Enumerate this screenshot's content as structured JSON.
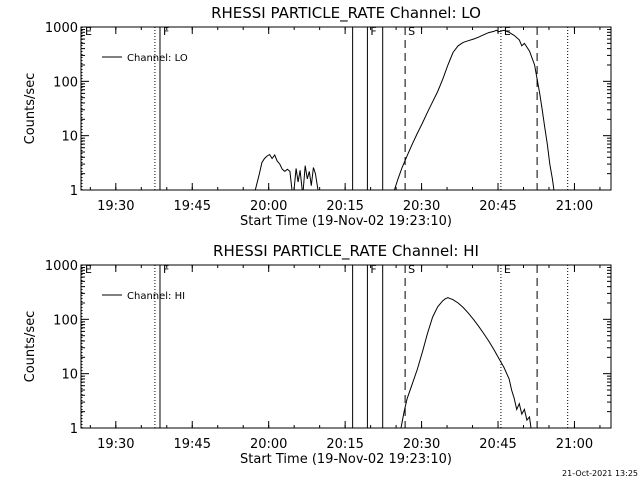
{
  "chart_data": [
    {
      "type": "line",
      "title": "RHESSI PARTICLE_RATE Channel: LO",
      "xlabel": "Start Time (19-Nov-02 19:23:10)",
      "ylabel": "Counts/sec",
      "x_unit": "minutes after 19:23:10 UT",
      "xlim": [
        0,
        104
      ],
      "ylim": [
        1,
        1000
      ],
      "yscale": "log",
      "grid": false,
      "legend": {
        "placement": "top-left",
        "label": "Channel: LO"
      },
      "x_ticks": [
        {
          "value": 6.83,
          "label": "19:30"
        },
        {
          "value": 21.83,
          "label": "19:45"
        },
        {
          "value": 36.83,
          "label": "20:00"
        },
        {
          "value": 51.83,
          "label": "20:15"
        },
        {
          "value": 66.83,
          "label": "20:30"
        },
        {
          "value": 81.83,
          "label": "20:45"
        },
        {
          "value": 96.83,
          "label": "21:00"
        }
      ],
      "y_ticks": [
        {
          "value": 1,
          "label": "1"
        },
        {
          "value": 10,
          "label": "10"
        },
        {
          "value": 100,
          "label": "100"
        },
        {
          "value": 1000,
          "label": "1000"
        }
      ],
      "markers": [
        {
          "x": 0.2,
          "style": "dotted",
          "label": "E"
        },
        {
          "x": 14.5,
          "style": "dotted",
          "label": ""
        },
        {
          "x": 15.5,
          "style": "solid",
          "label": "F"
        },
        {
          "x": 53.3,
          "style": "solid",
          "label": ""
        },
        {
          "x": 56.2,
          "style": "solid",
          "label": "F"
        },
        {
          "x": 59.2,
          "style": "solid",
          "label": ""
        },
        {
          "x": 63.6,
          "style": "dashed",
          "label": "S"
        },
        {
          "x": 82.4,
          "style": "dotted",
          "label": "E"
        },
        {
          "x": 89.5,
          "style": "dashed",
          "label": ""
        },
        {
          "x": 95.5,
          "style": "dotted",
          "label": ""
        }
      ],
      "series": [
        {
          "name": "Channel: LO",
          "segments": [
            [
              [
                34.2,
                1
              ],
              [
                35.0,
                2
              ],
              [
                35.5,
                3.2
              ],
              [
                36.0,
                3.8
              ],
              [
                36.5,
                4.2
              ],
              [
                37.0,
                4.5
              ],
              [
                37.5,
                3.8
              ],
              [
                38.0,
                4.4
              ],
              [
                38.5,
                3.4
              ],
              [
                39.0,
                3.0
              ],
              [
                39.5,
                2.4
              ],
              [
                40.0,
                2.2
              ],
              [
                40.5,
                2.4
              ],
              [
                41.0,
                2.2
              ],
              [
                41.4,
                1
              ]
            ],
            [
              [
                41.8,
                1
              ],
              [
                42.2,
                2.5
              ],
              [
                42.6,
                1.4
              ],
              [
                43.0,
                2.3
              ],
              [
                43.4,
                1
              ],
              [
                43.6,
                1
              ],
              [
                44.0,
                2.8
              ],
              [
                44.4,
                1.6
              ],
              [
                44.8,
                2.2
              ],
              [
                45.2,
                1.2
              ],
              [
                45.6,
                2.6
              ],
              [
                46.0,
                2.0
              ],
              [
                46.5,
                1
              ]
            ],
            [
              [
                61.5,
                1
              ],
              [
                62.2,
                1.6
              ],
              [
                63.0,
                2.6
              ],
              [
                64.0,
                4.3
              ],
              [
                65.0,
                7
              ],
              [
                66.0,
                11
              ],
              [
                67.0,
                17
              ],
              [
                68.0,
                27
              ],
              [
                69.0,
                42
              ],
              [
                70.0,
                65
              ],
              [
                71.0,
                110
              ],
              [
                72.0,
                200
              ],
              [
                73.0,
                340
              ],
              [
                74.0,
                450
              ],
              [
                75.0,
                520
              ],
              [
                76.0,
                560
              ],
              [
                77.0,
                600
              ],
              [
                78.0,
                650
              ],
              [
                79.0,
                720
              ],
              [
                80.0,
                790
              ],
              [
                81.0,
                830
              ],
              [
                81.5,
                870
              ],
              [
                82.0,
                820
              ],
              [
                83.0,
                870
              ],
              [
                84.0,
                800
              ],
              [
                85.0,
                700
              ],
              [
                86.0,
                580
              ],
              [
                86.5,
                450
              ],
              [
                87.0,
                500
              ],
              [
                88.0,
                360
              ],
              [
                89.0,
                200
              ],
              [
                90.0,
                60
              ],
              [
                90.5,
                30
              ],
              [
                91.0,
                14
              ],
              [
                91.5,
                7
              ],
              [
                92.0,
                3
              ],
              [
                92.5,
                1.6
              ],
              [
                92.8,
                1
              ]
            ]
          ]
        }
      ]
    },
    {
      "type": "line",
      "title": "RHESSI PARTICLE_RATE Channel: HI",
      "xlabel": "Start Time (19-Nov-02 19:23:10)",
      "ylabel": "Counts/sec",
      "x_unit": "minutes after 19:23:10 UT",
      "xlim": [
        0,
        104
      ],
      "ylim": [
        1,
        1000
      ],
      "yscale": "log",
      "grid": false,
      "legend": {
        "placement": "top-left",
        "label": "Channel: HI"
      },
      "x_ticks": [
        {
          "value": 6.83,
          "label": "19:30"
        },
        {
          "value": 21.83,
          "label": "19:45"
        },
        {
          "value": 36.83,
          "label": "20:00"
        },
        {
          "value": 51.83,
          "label": "20:15"
        },
        {
          "value": 66.83,
          "label": "20:30"
        },
        {
          "value": 81.83,
          "label": "20:45"
        },
        {
          "value": 96.83,
          "label": "21:00"
        }
      ],
      "y_ticks": [
        {
          "value": 1,
          "label": "1"
        },
        {
          "value": 10,
          "label": "10"
        },
        {
          "value": 100,
          "label": "100"
        },
        {
          "value": 1000,
          "label": "1000"
        }
      ],
      "markers": [
        {
          "x": 0.2,
          "style": "dotted",
          "label": "E"
        },
        {
          "x": 14.5,
          "style": "dotted",
          "label": ""
        },
        {
          "x": 15.5,
          "style": "solid",
          "label": "F"
        },
        {
          "x": 53.3,
          "style": "solid",
          "label": ""
        },
        {
          "x": 56.2,
          "style": "solid",
          "label": "F"
        },
        {
          "x": 59.2,
          "style": "solid",
          "label": ""
        },
        {
          "x": 63.6,
          "style": "dashed",
          "label": "S"
        },
        {
          "x": 82.4,
          "style": "dotted",
          "label": "E"
        },
        {
          "x": 89.5,
          "style": "dashed",
          "label": ""
        },
        {
          "x": 95.5,
          "style": "dotted",
          "label": ""
        }
      ],
      "series": [
        {
          "name": "Channel: HI",
          "segments": [
            [
              [
                62.8,
                1
              ],
              [
                63.4,
                2
              ],
              [
                64.0,
                3.5
              ],
              [
                65.0,
                6.5
              ],
              [
                66.0,
                12
              ],
              [
                67.0,
                25
              ],
              [
                68.0,
                55
              ],
              [
                69.0,
                110
              ],
              [
                70.0,
                170
              ],
              [
                71.0,
                220
              ],
              [
                71.5,
                240
              ],
              [
                72.0,
                250
              ],
              [
                73.0,
                230
              ],
              [
                74.0,
                200
              ],
              [
                75.0,
                165
              ],
              [
                76.0,
                130
              ],
              [
                77.0,
                100
              ],
              [
                78.0,
                75
              ],
              [
                79.0,
                55
              ],
              [
                80.0,
                40
              ],
              [
                81.0,
                28
              ],
              [
                82.0,
                19
              ],
              [
                83.0,
                13
              ],
              [
                84.0,
                8
              ],
              [
                84.5,
                5
              ],
              [
                85.0,
                3.5
              ],
              [
                85.5,
                2.2
              ],
              [
                86.0,
                2.8
              ],
              [
                86.5,
                1.8
              ],
              [
                87.0,
                2.2
              ],
              [
                87.5,
                1.4
              ],
              [
                88.0,
                1.6
              ],
              [
                88.3,
                1
              ]
            ]
          ]
        }
      ]
    }
  ],
  "timestamp": "21-Oct-2021 13:25"
}
